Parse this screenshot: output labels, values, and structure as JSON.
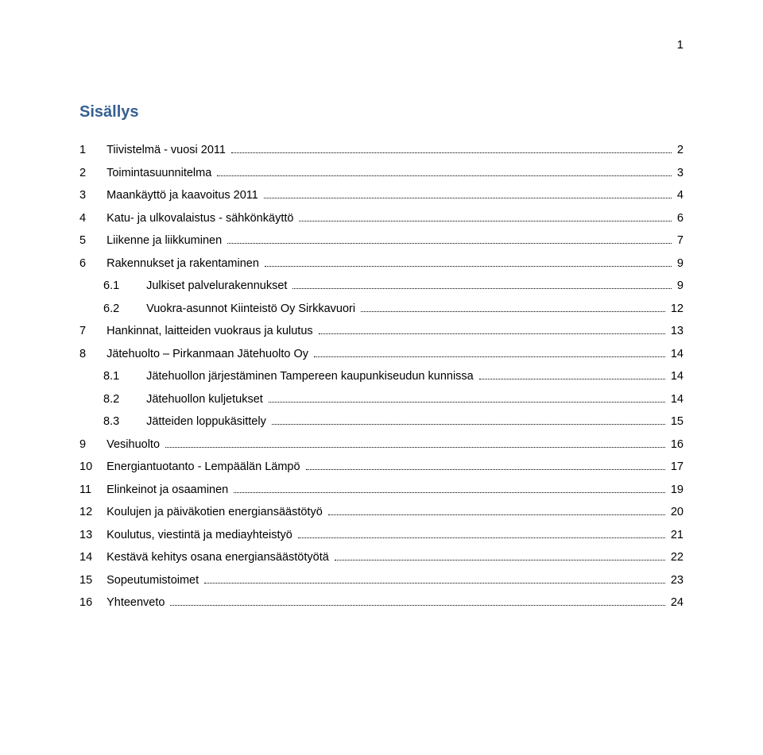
{
  "page_number": "1",
  "title": "Sisällys",
  "toc": [
    {
      "num": "1",
      "label": "Tiivistelmä - vuosi 2011",
      "page": "2",
      "level": 0
    },
    {
      "num": "2",
      "label": "Toimintasuunnitelma",
      "page": "3",
      "level": 0
    },
    {
      "num": "3",
      "label": "Maankäyttö ja kaavoitus 2011",
      "page": "4",
      "level": 0
    },
    {
      "num": "4",
      "label": "Katu- ja ulkovalaistus - sähkönkäyttö",
      "page": "6",
      "level": 0
    },
    {
      "num": "5",
      "label": "Liikenne ja liikkuminen",
      "page": "7",
      "level": 0
    },
    {
      "num": "6",
      "label": "Rakennukset ja rakentaminen",
      "page": "9",
      "level": 0
    },
    {
      "num": "6.1",
      "label": "Julkiset palvelurakennukset",
      "page": "9",
      "level": 1
    },
    {
      "num": "6.2",
      "label": "Vuokra-asunnot Kiinteistö Oy Sirkkavuori",
      "page": "12",
      "level": 1
    },
    {
      "num": "7",
      "label": "Hankinnat, laitteiden vuokraus ja kulutus",
      "page": "13",
      "level": 0
    },
    {
      "num": "8",
      "label": "Jätehuolto – Pirkanmaan Jätehuolto Oy",
      "page": "14",
      "level": 0
    },
    {
      "num": "8.1",
      "label": "Jätehuollon järjestäminen Tampereen kaupunkiseudun kunnissa",
      "page": "14",
      "level": 1
    },
    {
      "num": "8.2",
      "label": "Jätehuollon kuljetukset",
      "page": "14",
      "level": 1
    },
    {
      "num": "8.3",
      "label": "Jätteiden loppukäsittely",
      "page": "15",
      "level": 1
    },
    {
      "num": "9",
      "label": "Vesihuolto",
      "page": "16",
      "level": 0
    },
    {
      "num": "10",
      "label": "Energiantuotanto - Lempäälän Lämpö",
      "page": "17",
      "level": 0
    },
    {
      "num": "11",
      "label": "Elinkeinot ja osaaminen",
      "page": "19",
      "level": 0
    },
    {
      "num": "12",
      "label": "Koulujen ja päiväkotien energiansäästötyö",
      "page": "20",
      "level": 0
    },
    {
      "num": "13",
      "label": "Koulutus, viestintä ja mediayhteistyö",
      "page": "21",
      "level": 0
    },
    {
      "num": "14",
      "label": "Kestävä kehitys osana energiansäästötyötä",
      "page": "22",
      "level": 0
    },
    {
      "num": "15",
      "label": "Sopeutumistoimet",
      "page": "23",
      "level": 0
    },
    {
      "num": "16",
      "label": "Yhteenveto",
      "page": "24",
      "level": 0
    }
  ],
  "colors": {
    "title": "#365f91",
    "text": "#000000",
    "background": "#ffffff"
  }
}
